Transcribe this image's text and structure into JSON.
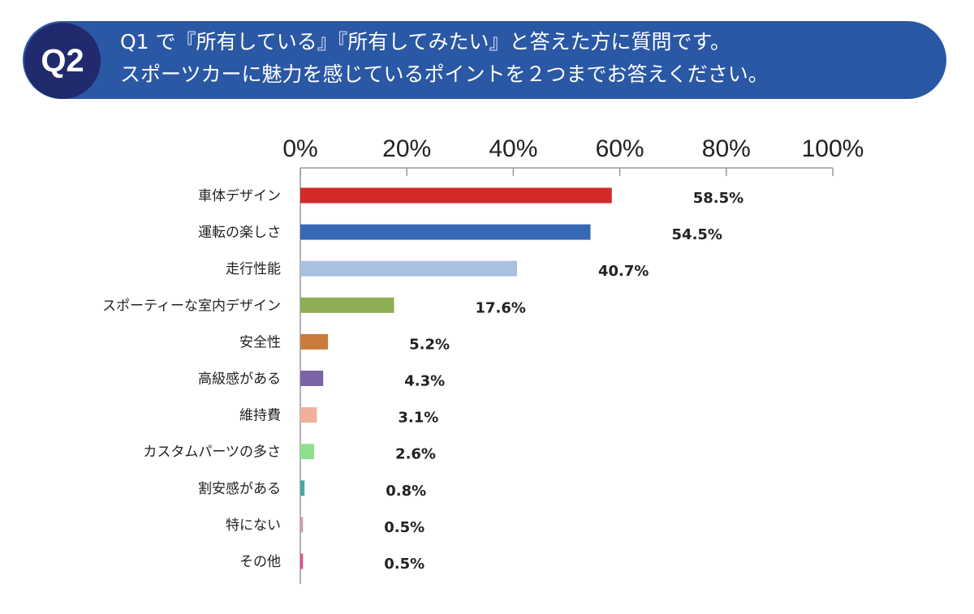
{
  "header": {
    "badge": "Q2",
    "line1": "Q1 で『所有している』『所有してみたい』と答えた方に質問です。",
    "line2": "スポーツカーに魅力を感じているポイントを２つまでお答えください。"
  },
  "chart_data": {
    "type": "bar",
    "orientation": "horizontal",
    "xlim": [
      0,
      100
    ],
    "ticks": [
      "0%",
      "20%",
      "40%",
      "60%",
      "80%",
      "100%"
    ],
    "categories": [
      "車体デザイン",
      "運転の楽しさ",
      "走行性能",
      "スポーティーな室内デザイン",
      "安全性",
      "高級感がある",
      "維持費",
      "カスタムパーツの多さ",
      "割安感がある",
      "特にない",
      "その他"
    ],
    "values": [
      58.5,
      54.5,
      40.7,
      17.6,
      5.2,
      4.3,
      3.1,
      2.6,
      0.8,
      0.5,
      0.5
    ],
    "value_labels": [
      "58.5%",
      "54.5%",
      "40.7%",
      "17.6%",
      "5.2%",
      "4.3%",
      "3.1%",
      "2.6%",
      "0.8%",
      "0.5%",
      "0.5%"
    ],
    "colors": [
      "#d42a2a",
      "#3568b5",
      "#aac0e0",
      "#8eae54",
      "#c97b3c",
      "#7a64a6",
      "#efb09c",
      "#8ee08e",
      "#4aa8a0",
      "#c8a0a8",
      "#e0508c"
    ],
    "grid": false,
    "axis_position": "top"
  }
}
